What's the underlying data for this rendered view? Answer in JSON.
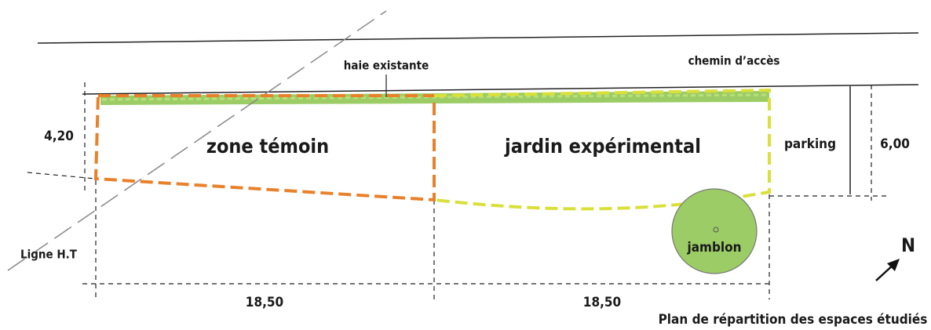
{
  "labels": {
    "hedge": "haie existante",
    "path": "chemin d’accès",
    "width_left": "4,20",
    "zone_control": "zone témoin",
    "zone_garden": "jardin expérimental",
    "parking": "parking",
    "width_right": "6,00",
    "power_line": "Ligne H.T",
    "tree": "jamblon",
    "north": "N",
    "length_left": "18,50",
    "length_right": "18,50",
    "caption": "Plan de répartition des espaces étudiés"
  }
}
